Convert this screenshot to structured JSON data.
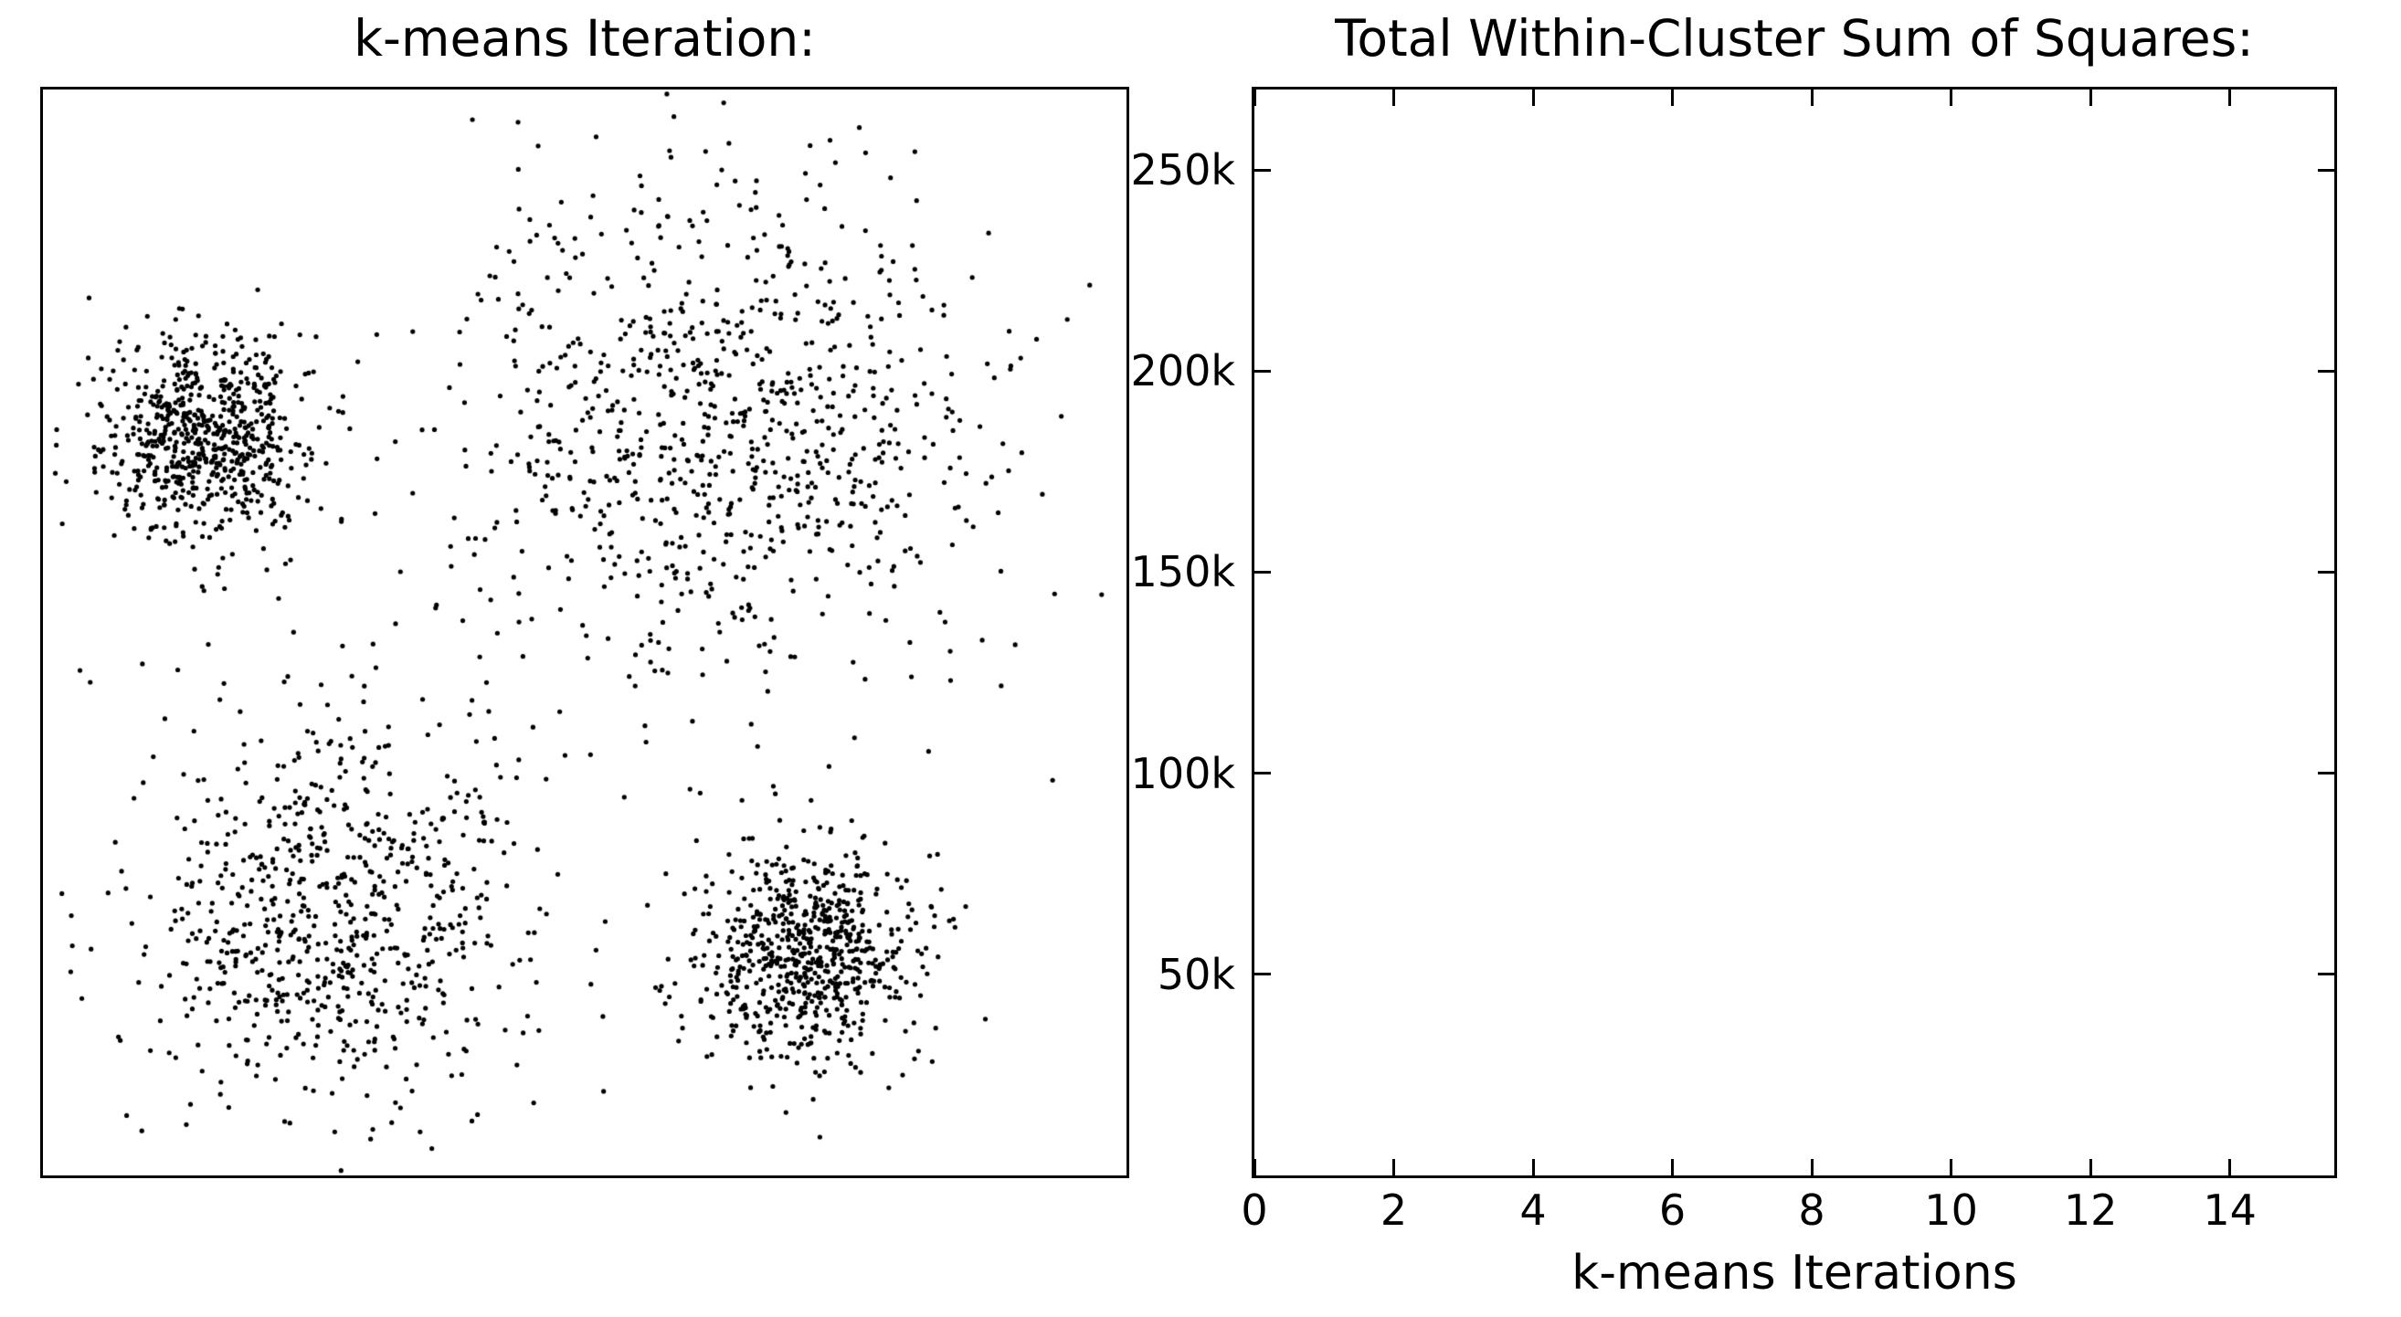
{
  "figure": {
    "background": "#ffffff",
    "foreground": "#000000"
  },
  "chart_data": [
    {
      "id": "scatter",
      "type": "scatter",
      "title": "k-means Iteration:",
      "xlabel": "",
      "ylabel": "",
      "xticks": [],
      "yticks": [],
      "grid": false,
      "marker": {
        "color": "#000000",
        "radius_px": 2.6
      },
      "clusters": [
        {
          "name": "top-left-dense",
          "cx": 0.149,
          "cy": 0.322,
          "sx": 0.048,
          "sy": 0.048,
          "n": 700
        },
        {
          "name": "top-right-diffuse",
          "cx": 0.627,
          "cy": 0.314,
          "sx": 0.126,
          "sy": 0.118,
          "n": 900
        },
        {
          "name": "bottom-left-diffuse",
          "cx": 0.268,
          "cy": 0.754,
          "sx": 0.094,
          "sy": 0.094,
          "n": 750
        },
        {
          "name": "bottom-right-dense",
          "cx": 0.707,
          "cy": 0.796,
          "sx": 0.05,
          "sy": 0.05,
          "n": 700
        }
      ]
    },
    {
      "id": "wss",
      "type": "line",
      "title": "Total Within-Cluster Sum of Squares:",
      "xlabel": "k-means Iterations",
      "ylabel": "",
      "xlim": [
        0,
        15.5
      ],
      "ylim": [
        0,
        270000
      ],
      "xticks": [
        {
          "value": 0,
          "label": "0"
        },
        {
          "value": 2,
          "label": "2"
        },
        {
          "value": 4,
          "label": "4"
        },
        {
          "value": 6,
          "label": "6"
        },
        {
          "value": 8,
          "label": "8"
        },
        {
          "value": 10,
          "label": "10"
        },
        {
          "value": 12,
          "label": "12"
        },
        {
          "value": 14,
          "label": "14"
        }
      ],
      "yticks": [
        {
          "value": 50000,
          "label": "50k"
        },
        {
          "value": 100000,
          "label": "100k"
        },
        {
          "value": 150000,
          "label": "150k"
        },
        {
          "value": 200000,
          "label": "200k"
        },
        {
          "value": 250000,
          "label": "250k"
        }
      ],
      "grid": false,
      "series": []
    }
  ]
}
